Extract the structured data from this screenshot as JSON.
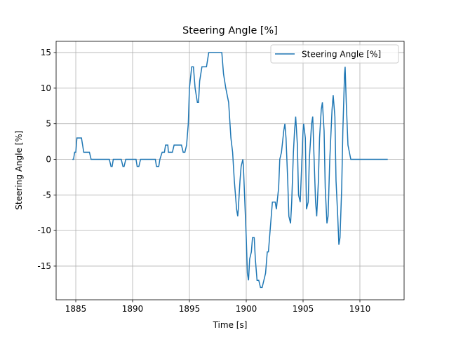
{
  "chart_data": {
    "type": "line",
    "title": "Steering Angle [%]",
    "xlabel": "Time [s]",
    "ylabel": "Steering Angle [%]",
    "x": [
      1884.7,
      1884.8,
      1884.9,
      1885.0,
      1885.1,
      1885.5,
      1885.6,
      1885.7,
      1886.2,
      1886.35,
      1887.95,
      1888.1,
      1888.2,
      1888.3,
      1889.0,
      1889.15,
      1889.25,
      1889.4,
      1890.3,
      1890.4,
      1890.55,
      1890.7,
      1892.0,
      1892.1,
      1892.3,
      1892.4,
      1892.6,
      1892.8,
      1892.9,
      1893.1,
      1893.15,
      1893.5,
      1893.65,
      1894.3,
      1894.45,
      1894.6,
      1894.75,
      1894.9,
      1895.0,
      1895.2,
      1895.35,
      1895.5,
      1895.7,
      1895.8,
      1895.9,
      1896.1,
      1896.5,
      1896.6,
      1896.7,
      1897.85,
      1898.0,
      1898.2,
      1898.45,
      1898.65,
      1898.8,
      1898.95,
      1899.15,
      1899.25,
      1899.3,
      1899.45,
      1899.55,
      1899.7,
      1899.75,
      1899.9,
      1900.0,
      1900.1,
      1900.2,
      1900.3,
      1900.45,
      1900.55,
      1900.7,
      1900.8,
      1900.95,
      1901.1,
      1901.25,
      1901.4,
      1901.55,
      1901.7,
      1901.85,
      1901.95,
      1902.1,
      1902.3,
      1902.55,
      1902.65,
      1902.85,
      1902.95,
      1903.1,
      1903.3,
      1903.4,
      1903.5,
      1903.65,
      1903.75,
      1903.9,
      1904.0,
      1904.15,
      1904.25,
      1904.35,
      1904.5,
      1904.6,
      1904.75,
      1904.85,
      1905.0,
      1905.05,
      1905.2,
      1905.3,
      1905.45,
      1905.55,
      1905.75,
      1905.85,
      1905.95,
      1906.1,
      1906.2,
      1906.35,
      1906.45,
      1906.6,
      1906.7,
      1906.85,
      1906.95,
      1907.1,
      1907.2,
      1907.35,
      1907.55,
      1907.65,
      1907.8,
      1907.9,
      1908.05,
      1908.15,
      1908.25,
      1908.4,
      1908.5,
      1908.65,
      1908.7,
      1908.8,
      1908.95,
      1909.2,
      1912.45
    ],
    "series": [
      {
        "name": "Steering Angle [%]",
        "color": "#1f77b4",
        "values": [
          0,
          0,
          1,
          1,
          3,
          3,
          2,
          1,
          1,
          0,
          0,
          -1,
          -1,
          0,
          0,
          -1,
          -1,
          0,
          0,
          -1,
          -1,
          0,
          0,
          -1,
          -1,
          0,
          1,
          1,
          2,
          2,
          1,
          1,
          2,
          2,
          1,
          1,
          2,
          5,
          10,
          13,
          13,
          10,
          8,
          8,
          11,
          13,
          13,
          14,
          15,
          15,
          12,
          10,
          8,
          3,
          1,
          -3,
          -7,
          -8,
          -7,
          -3,
          -1,
          0,
          -1,
          -7,
          -11,
          -16,
          -17,
          -14,
          -13,
          -11,
          -11,
          -14,
          -17,
          -17,
          -18,
          -18,
          -17,
          -16,
          -13,
          -13,
          -10,
          -6,
          -6,
          -7,
          -4,
          0,
          1,
          4,
          5,
          3,
          -3,
          -8,
          -9,
          -6,
          1,
          4,
          6,
          2,
          -5,
          -6,
          -2,
          4,
          5,
          3,
          -7,
          -6,
          0,
          5,
          6,
          1,
          -6,
          -8,
          -3,
          3,
          7,
          8,
          4,
          -4,
          -9,
          -8,
          0,
          7,
          9,
          6,
          -3,
          -8,
          -12,
          -11,
          -4,
          4,
          12,
          13,
          8,
          2,
          0,
          0
        ]
      }
    ],
    "xlim": [
      1883.27,
      1913.89
    ],
    "ylim": [
      -19.73,
      16.58
    ],
    "xticks": [
      1885,
      1890,
      1895,
      1900,
      1905,
      1910
    ],
    "yticks": [
      -15,
      -10,
      -5,
      0,
      5,
      10,
      15
    ],
    "grid": true,
    "legend": "upper right"
  }
}
